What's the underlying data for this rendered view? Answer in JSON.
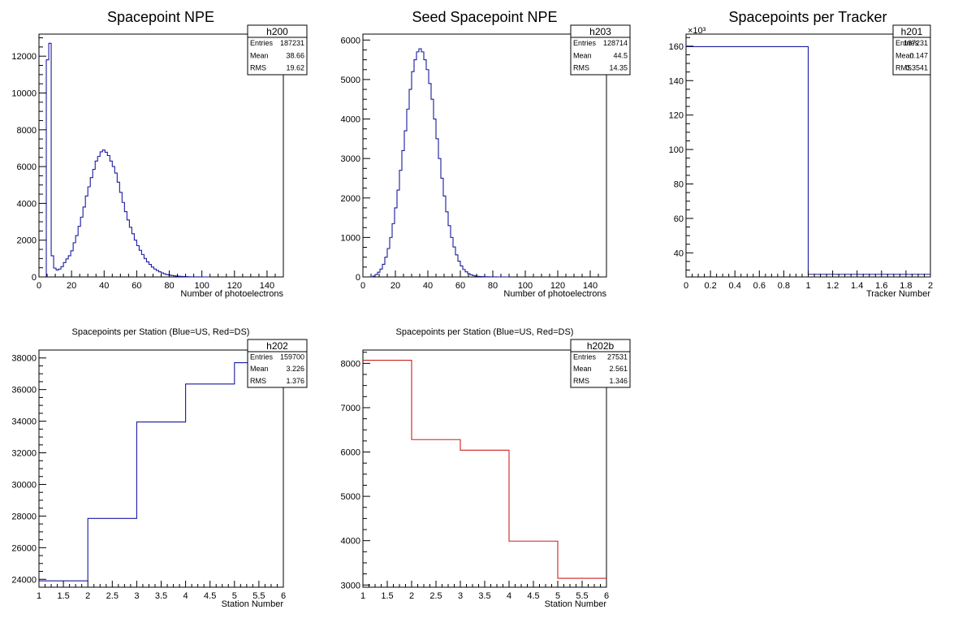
{
  "chart_data": [
    {
      "id": "h200",
      "type": "histogram",
      "title": "Spacepoint NPE",
      "xlabel": "Number of photoelectrons",
      "ylabel": "",
      "xlim": [
        0,
        150
      ],
      "ylim": [
        0,
        13200
      ],
      "xticks": [
        0,
        20,
        40,
        60,
        80,
        100,
        120,
        140
      ],
      "yticks": [
        0,
        2000,
        4000,
        6000,
        8000,
        10000,
        12000
      ],
      "y_multiplier": "",
      "color": "#1a1aa0",
      "bin_edges_start": 0,
      "bin_width": 1.5,
      "counts": [
        0,
        0,
        0,
        11800,
        12700,
        1150,
        480,
        380,
        430,
        560,
        780,
        980,
        1150,
        1420,
        1860,
        2250,
        2750,
        3250,
        3800,
        4400,
        4900,
        5400,
        5850,
        6300,
        6550,
        6800,
        6900,
        6780,
        6600,
        6300,
        6000,
        5650,
        5150,
        4600,
        4050,
        3550,
        3100,
        2700,
        2350,
        2000,
        1700,
        1450,
        1220,
        1000,
        820,
        680,
        540,
        430,
        350,
        280,
        220,
        170,
        130,
        100,
        80,
        60,
        45,
        35,
        25,
        18,
        12,
        8,
        5,
        3,
        2,
        1,
        0,
        0,
        0,
        0
      ],
      "stats": {
        "name": "h200",
        "rows": [
          {
            "label": "Entries",
            "value": "187231"
          },
          {
            "label": "Mean",
            "value": "38.66"
          },
          {
            "label": "RMS",
            "value": "19.62"
          }
        ]
      }
    },
    {
      "id": "h203",
      "type": "histogram",
      "title": "Seed Spacepoint NPE",
      "xlabel": "Number of photoelectrons",
      "ylabel": "",
      "xlim": [
        0,
        150
      ],
      "ylim": [
        0,
        6150
      ],
      "xticks": [
        0,
        20,
        40,
        60,
        80,
        100,
        120,
        140
      ],
      "yticks": [
        0,
        1000,
        2000,
        3000,
        4000,
        5000,
        6000
      ],
      "y_multiplier": "",
      "color": "#1a1aa0",
      "bin_edges_start": 0,
      "bin_width": 1.5,
      "counts": [
        0,
        0,
        0,
        0,
        20,
        60,
        120,
        200,
        320,
        500,
        720,
        1000,
        1350,
        1750,
        2200,
        2700,
        3200,
        3700,
        4250,
        4750,
        5200,
        5500,
        5700,
        5780,
        5700,
        5500,
        5250,
        4900,
        4500,
        4000,
        3500,
        3000,
        2500,
        2050,
        1650,
        1300,
        1000,
        760,
        560,
        400,
        280,
        190,
        130,
        85,
        55,
        35,
        22,
        15,
        10,
        6,
        4,
        3,
        2,
        1,
        1,
        0,
        0,
        0,
        0,
        0
      ],
      "stats": {
        "name": "h203",
        "rows": [
          {
            "label": "Entries",
            "value": "128714"
          },
          {
            "label": "Mean",
            "value": "44.5"
          },
          {
            "label": "RMS",
            "value": "14.35"
          }
        ]
      }
    },
    {
      "id": "h201",
      "type": "histogram",
      "title": "Spacepoints per Tracker",
      "xlabel": "Tracker Number",
      "ylabel": "",
      "xlim": [
        0,
        2
      ],
      "ylim": [
        26000,
        167000
      ],
      "xticks": [
        0,
        0.2,
        0.4,
        0.6,
        0.8,
        1,
        1.2,
        1.4,
        1.6,
        1.8,
        2
      ],
      "yticks": [
        40000,
        60000,
        80000,
        100000,
        120000,
        140000,
        160000
      ],
      "ytick_labels": [
        "40",
        "60",
        "80",
        "100",
        "120",
        "140",
        "160"
      ],
      "y_multiplier": "×10³",
      "color": "#1a1aa0",
      "bin_edges_start": 0,
      "bin_width": 1,
      "counts": [
        159700,
        27531
      ],
      "stats": {
        "name": "h201",
        "rows": [
          {
            "label": "Entries",
            "value": "187231"
          },
          {
            "label": "Mean",
            "value": "0.147"
          },
          {
            "label": "RMS",
            "value": "0.3541"
          }
        ]
      }
    },
    {
      "id": "h202",
      "type": "histogram",
      "title": "Spacepoints per Station (Blue=US, Red=DS)",
      "xlabel": "Station Number",
      "ylabel": "",
      "xlim": [
        1,
        6
      ],
      "ylim": [
        23500,
        38500
      ],
      "xticks": [
        1,
        1.5,
        2,
        2.5,
        3,
        3.5,
        4,
        4.5,
        5,
        5.5,
        6
      ],
      "yticks": [
        24000,
        26000,
        28000,
        30000,
        32000,
        34000,
        36000,
        38000
      ],
      "y_multiplier": "",
      "color": "#1a1aa0",
      "bin_edges_start": 1,
      "bin_width": 1,
      "counts": [
        23900,
        27850,
        33950,
        36350,
        37700
      ],
      "stats": {
        "name": "h202",
        "rows": [
          {
            "label": "Entries",
            "value": "159700"
          },
          {
            "label": "Mean",
            "value": "3.226"
          },
          {
            "label": "RMS",
            "value": "1.376"
          }
        ]
      }
    },
    {
      "id": "h202b",
      "type": "histogram",
      "title": "Spacepoints per Station (Blue=US, Red=DS)",
      "xlabel": "Station Number",
      "ylabel": "",
      "xlim": [
        1,
        6
      ],
      "ylim": [
        2950,
        8300
      ],
      "xticks": [
        1,
        1.5,
        2,
        2.5,
        3,
        3.5,
        4,
        4.5,
        5,
        5.5,
        6
      ],
      "yticks": [
        3000,
        4000,
        5000,
        6000,
        7000,
        8000
      ],
      "y_multiplier": "",
      "color": "#cc2020",
      "bin_edges_start": 1,
      "bin_width": 1,
      "counts": [
        8070,
        6280,
        6040,
        3990,
        3150
      ],
      "stats": {
        "name": "h202b",
        "rows": [
          {
            "label": "Entries",
            "value": "27531"
          },
          {
            "label": "Mean",
            "value": "2.561"
          },
          {
            "label": "RMS",
            "value": "1.346"
          }
        ]
      }
    }
  ]
}
